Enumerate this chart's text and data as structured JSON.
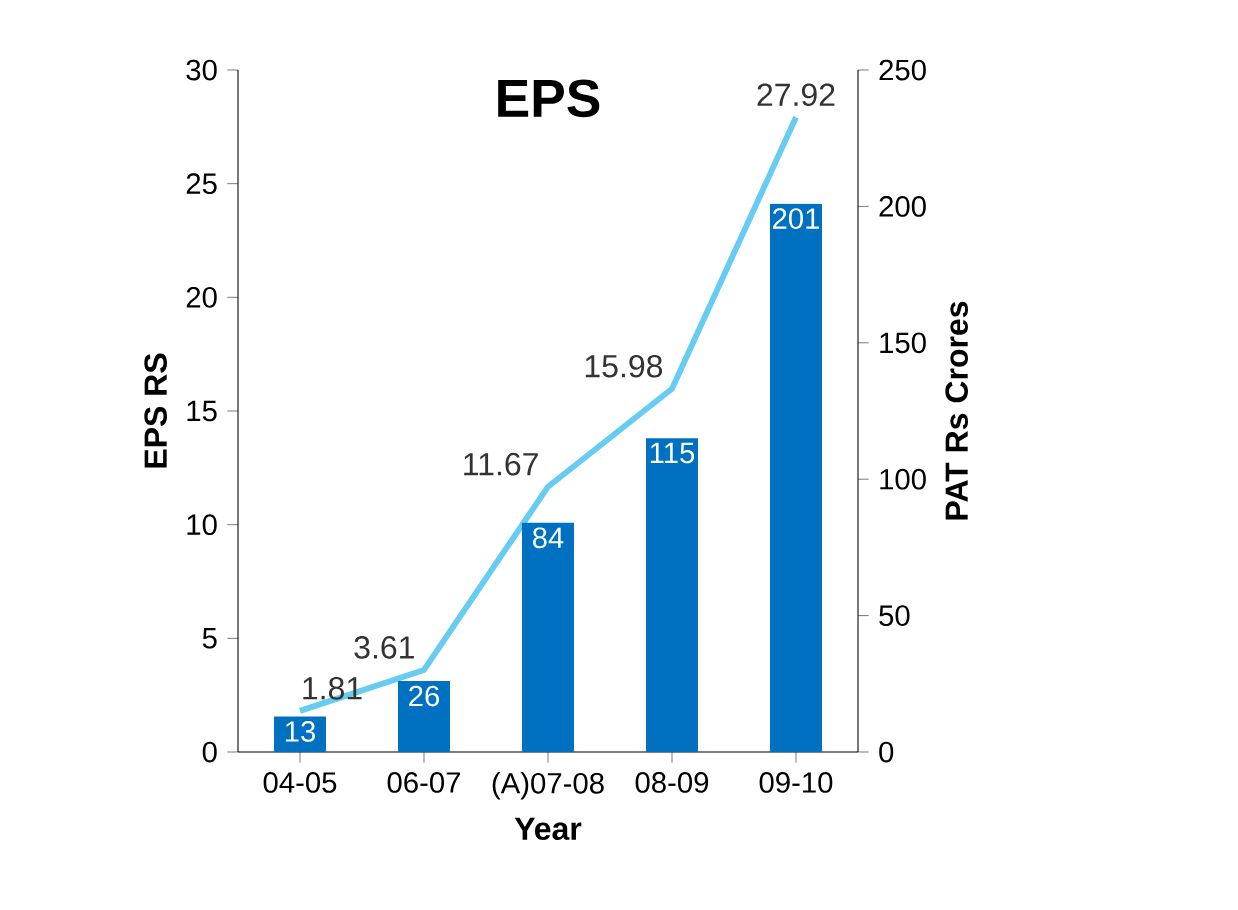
{
  "chart_data": {
    "type": "bar",
    "title": "EPS",
    "xlabel": "Year",
    "ylabel": "EPS RS",
    "y2label": "PAT Rs Crores",
    "categories": [
      "04-05",
      "06-07",
      "(A)07-08",
      "08-09",
      "09-10"
    ],
    "series": [
      {
        "axis": "y2",
        "color": "#0070c0",
        "values": [
          13,
          26,
          84,
          115,
          201
        ]
      },
      {
        "type": "line",
        "axis": "y",
        "color": "#66ccf2",
        "values": [
          1.81,
          3.61,
          11.67,
          15.98,
          27.92
        ]
      }
    ],
    "ylim": [
      0,
      30
    ],
    "yticks": [
      0,
      5,
      10,
      15,
      20,
      25,
      30
    ],
    "y2lim": [
      0,
      250
    ],
    "y2ticks": [
      0,
      50,
      100,
      150,
      200,
      250
    ],
    "data_labels": true,
    "grid": false
  }
}
